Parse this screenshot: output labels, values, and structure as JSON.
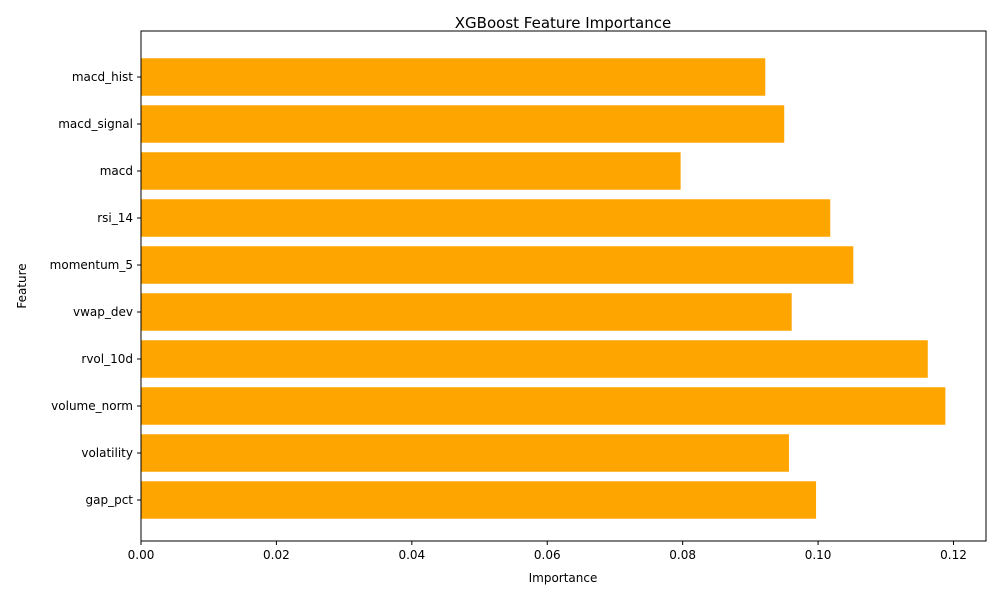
{
  "chart_data": {
    "type": "bar",
    "orientation": "horizontal",
    "title": "XGBoost Feature Importance",
    "xlabel": "Importance",
    "ylabel": "Feature",
    "categories": [
      "gap_pct",
      "volatility",
      "volume_norm",
      "rvol_10d",
      "vwap_dev",
      "momentum_5",
      "rsi_14",
      "macd",
      "macd_signal",
      "macd_hist"
    ],
    "values": [
      0.0997,
      0.0957,
      0.1188,
      0.1162,
      0.0961,
      0.1052,
      0.1018,
      0.0797,
      0.095,
      0.0922
    ],
    "xlim": [
      0,
      0.1248
    ],
    "xticks": [
      0.0,
      0.02,
      0.04,
      0.06,
      0.08,
      0.1,
      0.12
    ],
    "xtick_labels": [
      "0.00",
      "0.02",
      "0.04",
      "0.06",
      "0.08",
      "0.10",
      "0.12"
    ],
    "bar_color": "#FFA500",
    "grid": false,
    "legend": "none"
  }
}
